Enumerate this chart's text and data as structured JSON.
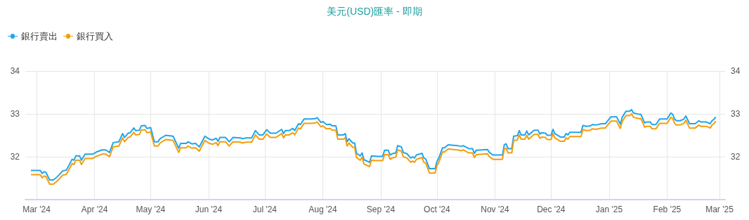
{
  "chart_data": {
    "type": "line",
    "title": "美元(USD)匯率 - 即期",
    "x": [
      "2024-02-27",
      "2024-03-03",
      "2024-03-04",
      "2024-03-05",
      "2024-03-06",
      "2024-03-08",
      "2024-03-10",
      "2024-03-12",
      "2024-03-15",
      "2024-03-17",
      "2024-03-20",
      "2024-03-21",
      "2024-03-22",
      "2024-03-24",
      "2024-03-25",
      "2024-03-27",
      "2024-03-31",
      "2024-04-02",
      "2024-04-05",
      "2024-04-07",
      "2024-04-09",
      "2024-04-11",
      "2024-04-14",
      "2024-04-16",
      "2024-04-17",
      "2024-04-19",
      "2024-04-20",
      "2024-04-22",
      "2024-04-23",
      "2024-04-25",
      "2024-04-26",
      "2024-04-28",
      "2024-04-29",
      "2024-05-01",
      "2024-05-03",
      "2024-05-05",
      "2024-05-06",
      "2024-05-09",
      "2024-05-13",
      "2024-05-16",
      "2024-05-17",
      "2024-05-20",
      "2024-05-21",
      "2024-05-23",
      "2024-05-25",
      "2024-05-27",
      "2024-05-30",
      "2024-06-01",
      "2024-06-03",
      "2024-06-05",
      "2024-06-06",
      "2024-06-07",
      "2024-06-10",
      "2024-06-12",
      "2024-06-14",
      "2024-06-18",
      "2024-06-19",
      "2024-06-21",
      "2024-06-24",
      "2024-06-26",
      "2024-06-28",
      "2024-06-30",
      "2024-07-02",
      "2024-07-04",
      "2024-07-07",
      "2024-07-10",
      "2024-07-11",
      "2024-07-12",
      "2024-07-14",
      "2024-07-16",
      "2024-07-17",
      "2024-07-19",
      "2024-07-20",
      "2024-07-22",
      "2024-07-26",
      "2024-07-28",
      "2024-07-29",
      "2024-07-31",
      "2024-08-01",
      "2024-08-03",
      "2024-08-05",
      "2024-08-06",
      "2024-08-08",
      "2024-08-09",
      "2024-08-12",
      "2024-08-13",
      "2024-08-14",
      "2024-08-15",
      "2024-08-17",
      "2024-08-18",
      "2024-08-19",
      "2024-08-21",
      "2024-08-22",
      "2024-08-23",
      "2024-08-26",
      "2024-08-27",
      "2024-08-30",
      "2024-09-02",
      "2024-09-03",
      "2024-09-05",
      "2024-09-06",
      "2024-09-07",
      "2024-09-09",
      "2024-09-10",
      "2024-09-12",
      "2024-09-13",
      "2024-09-15",
      "2024-09-17",
      "2024-09-18",
      "2024-09-19",
      "2024-09-20",
      "2024-09-23",
      "2024-09-24",
      "2024-09-25",
      "2024-09-27",
      "2024-09-30",
      "2024-10-01",
      "2024-10-02",
      "2024-10-04",
      "2024-10-05",
      "2024-10-07",
      "2024-10-12",
      "2024-10-14",
      "2024-10-15",
      "2024-10-18",
      "2024-10-20",
      "2024-10-21",
      "2024-10-22",
      "2024-10-28",
      "2024-10-29",
      "2024-10-31",
      "2024-11-05",
      "2024-11-06",
      "2024-11-07",
      "2024-11-08",
      "2024-11-10",
      "2024-11-11",
      "2024-11-13",
      "2024-11-14",
      "2024-11-15",
      "2024-11-17",
      "2024-11-18",
      "2024-11-19",
      "2024-11-22",
      "2024-11-24",
      "2024-11-25",
      "2024-11-26",
      "2024-11-28",
      "2024-11-29",
      "2024-12-01",
      "2024-12-02",
      "2024-12-03",
      "2024-12-06",
      "2024-12-08",
      "2024-12-09",
      "2024-12-10",
      "2024-12-11",
      "2024-12-17",
      "2024-12-18",
      "2024-12-20",
      "2024-12-22",
      "2024-12-23",
      "2024-12-25",
      "2024-12-28",
      "2024-12-30",
      "2025-01-01",
      "2025-01-02",
      "2025-01-05",
      "2025-01-07",
      "2025-01-08",
      "2025-01-09",
      "2025-01-10",
      "2025-01-12",
      "2025-01-13",
      "2025-01-14",
      "2025-01-17",
      "2025-01-18",
      "2025-01-20",
      "2025-01-21",
      "2025-01-23",
      "2025-01-24",
      "2025-01-26",
      "2025-01-28",
      "2025-02-01",
      "2025-02-03",
      "2025-02-04",
      "2025-02-05",
      "2025-02-06",
      "2025-02-08",
      "2025-02-10",
      "2025-02-11",
      "2025-02-13",
      "2025-02-16",
      "2025-02-18",
      "2025-02-19",
      "2025-02-22",
      "2025-02-24",
      "2025-02-25",
      "2025-02-26",
      "2025-02-27"
    ],
    "series": [
      {
        "name": "銀行賣出",
        "color": "#1ea7ea",
        "values": [
          31.68,
          31.68,
          31.61,
          31.65,
          31.64,
          31.46,
          31.46,
          31.53,
          31.67,
          31.69,
          31.94,
          31.92,
          32.02,
          32.02,
          31.92,
          32.06,
          32.06,
          32.11,
          32.16,
          32.16,
          32.1,
          32.33,
          32.35,
          32.54,
          32.45,
          32.55,
          32.56,
          32.67,
          32.61,
          32.62,
          32.72,
          32.73,
          32.66,
          32.68,
          32.35,
          32.35,
          32.42,
          32.5,
          32.48,
          32.2,
          32.31,
          32.31,
          32.35,
          32.3,
          32.31,
          32.23,
          32.48,
          32.42,
          32.39,
          32.43,
          32.36,
          32.45,
          32.45,
          32.35,
          32.45,
          32.44,
          32.42,
          32.44,
          32.44,
          32.61,
          32.51,
          32.51,
          32.63,
          32.55,
          32.55,
          32.64,
          32.54,
          32.61,
          32.61,
          32.66,
          32.61,
          32.77,
          32.75,
          32.88,
          32.88,
          32.89,
          32.91,
          32.8,
          32.82,
          32.75,
          32.76,
          32.72,
          32.72,
          32.51,
          32.51,
          32.54,
          32.35,
          32.42,
          32.32,
          32.32,
          32.08,
          32.02,
          32.09,
          31.93,
          31.87,
          32.02,
          32.01,
          32.01,
          32.15,
          32.15,
          32.04,
          32.07,
          32.09,
          32.26,
          32.23,
          32.1,
          32.07,
          31.97,
          32.0,
          31.97,
          32.04,
          32.08,
          31.97,
          31.95,
          31.72,
          31.72,
          31.89,
          31.97,
          32.21,
          32.21,
          32.28,
          32.26,
          32.24,
          32.26,
          32.19,
          32.19,
          32.08,
          32.15,
          32.17,
          32.1,
          32.04,
          32.04,
          32.28,
          32.3,
          32.19,
          32.19,
          32.48,
          32.49,
          32.61,
          32.51,
          32.51,
          32.6,
          32.51,
          32.62,
          32.62,
          32.53,
          32.56,
          32.55,
          32.5,
          32.5,
          32.64,
          32.54,
          32.46,
          32.46,
          32.54,
          32.51,
          32.57,
          32.57,
          32.73,
          32.71,
          32.72,
          32.75,
          32.74,
          32.77,
          32.77,
          32.88,
          32.93,
          32.93,
          32.76,
          32.92,
          32.99,
          33.06,
          33.06,
          33.1,
          33.02,
          32.99,
          32.99,
          32.79,
          32.81,
          32.81,
          32.75,
          32.75,
          32.88,
          32.88,
          33.02,
          32.99,
          32.88,
          32.84,
          32.84,
          32.88,
          32.95,
          32.77,
          32.77,
          32.84,
          32.81,
          32.81,
          32.77,
          32.84,
          32.87,
          32.93
        ]
      },
      {
        "name": "銀行買入",
        "color": "#f59d0c",
        "values": [
          31.58,
          31.58,
          31.51,
          31.55,
          31.54,
          31.36,
          31.36,
          31.43,
          31.57,
          31.59,
          31.84,
          31.82,
          31.92,
          31.92,
          31.82,
          31.96,
          31.96,
          32.01,
          32.06,
          32.06,
          32.0,
          32.23,
          32.25,
          32.44,
          32.35,
          32.45,
          32.46,
          32.57,
          32.51,
          32.52,
          32.62,
          32.63,
          32.56,
          32.58,
          32.25,
          32.25,
          32.32,
          32.4,
          32.38,
          32.1,
          32.21,
          32.21,
          32.25,
          32.2,
          32.21,
          32.13,
          32.38,
          32.32,
          32.29,
          32.33,
          32.26,
          32.35,
          32.35,
          32.25,
          32.35,
          32.34,
          32.32,
          32.34,
          32.34,
          32.51,
          32.41,
          32.41,
          32.53,
          32.45,
          32.45,
          32.54,
          32.44,
          32.51,
          32.51,
          32.56,
          32.51,
          32.67,
          32.65,
          32.78,
          32.78,
          32.79,
          32.81,
          32.7,
          32.72,
          32.65,
          32.66,
          32.62,
          32.62,
          32.41,
          32.41,
          32.44,
          32.25,
          32.32,
          32.22,
          32.22,
          31.98,
          31.92,
          31.99,
          31.83,
          31.77,
          31.92,
          31.91,
          31.91,
          32.05,
          32.05,
          31.94,
          31.97,
          31.99,
          32.16,
          32.13,
          32.0,
          31.97,
          31.87,
          31.9,
          31.87,
          31.94,
          31.98,
          31.87,
          31.85,
          31.62,
          31.62,
          31.79,
          31.87,
          32.11,
          32.11,
          32.18,
          32.16,
          32.14,
          32.16,
          32.09,
          32.09,
          31.98,
          32.05,
          32.07,
          32.0,
          31.94,
          31.94,
          32.18,
          32.2,
          32.09,
          32.09,
          32.38,
          32.39,
          32.51,
          32.41,
          32.41,
          32.5,
          32.41,
          32.52,
          32.52,
          32.43,
          32.46,
          32.45,
          32.4,
          32.4,
          32.54,
          32.44,
          32.36,
          32.36,
          32.44,
          32.41,
          32.47,
          32.47,
          32.63,
          32.61,
          32.62,
          32.65,
          32.64,
          32.67,
          32.67,
          32.78,
          32.83,
          32.83,
          32.66,
          32.82,
          32.89,
          32.96,
          32.96,
          33.0,
          32.92,
          32.89,
          32.89,
          32.69,
          32.71,
          32.71,
          32.65,
          32.65,
          32.78,
          32.78,
          32.92,
          32.89,
          32.78,
          32.74,
          32.74,
          32.78,
          32.85,
          32.67,
          32.67,
          32.74,
          32.71,
          32.71,
          32.67,
          32.74,
          32.77,
          32.83
        ]
      }
    ],
    "xlim": [
      "2024-02-24",
      "2025-03-04"
    ],
    "xticks": [
      {
        "value": "2024-03-01",
        "label": "Mar '24"
      },
      {
        "value": "2024-04-01",
        "label": "Apr '24"
      },
      {
        "value": "2024-05-01",
        "label": "May '24"
      },
      {
        "value": "2024-06-01",
        "label": "Jun '24"
      },
      {
        "value": "2024-07-01",
        "label": "Jul '24"
      },
      {
        "value": "2024-08-01",
        "label": "Aug '24"
      },
      {
        "value": "2024-09-01",
        "label": "Sep '24"
      },
      {
        "value": "2024-10-01",
        "label": "Oct '24"
      },
      {
        "value": "2024-11-01",
        "label": "Nov '24"
      },
      {
        "value": "2024-12-01",
        "label": "Dec '24"
      },
      {
        "value": "2025-01-01",
        "label": "Jan '25"
      },
      {
        "value": "2025-02-01",
        "label": "Feb '25"
      },
      {
        "value": "2025-03-01",
        "label": "Mar '25"
      }
    ],
    "ylim": [
      31,
      34
    ],
    "yticks": [
      32,
      33,
      34
    ],
    "y2lim": [
      31,
      34
    ],
    "y2ticks": [
      32,
      33,
      34
    ],
    "grid": true,
    "legend": "top left"
  }
}
